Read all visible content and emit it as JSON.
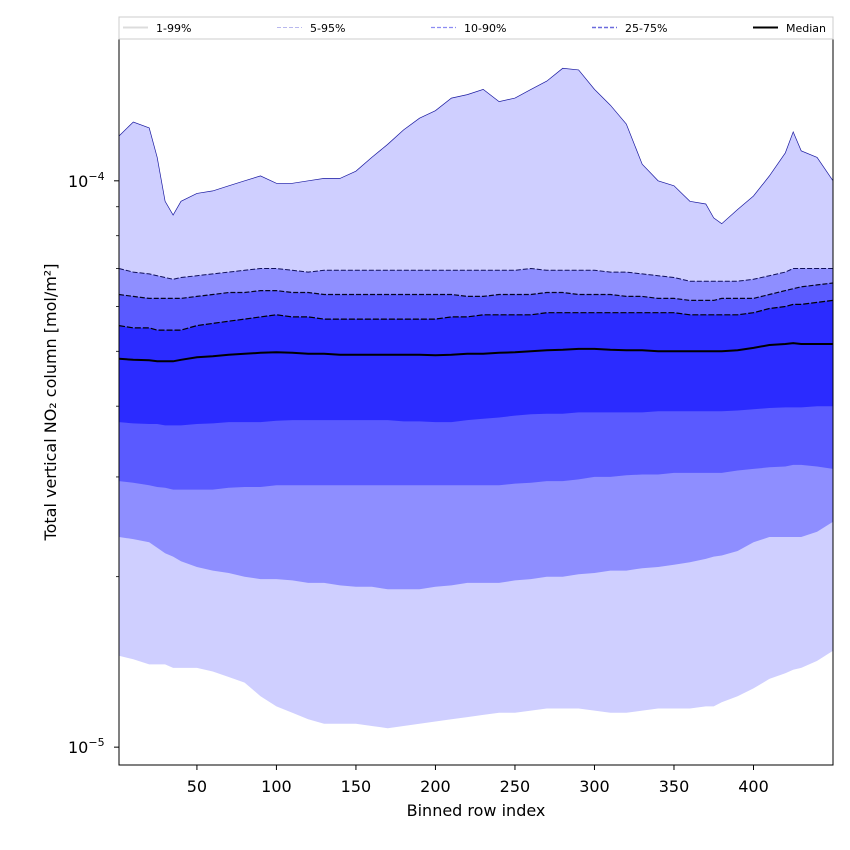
{
  "chart_data": {
    "type": "area",
    "title": "",
    "xlabel": "Binned row index",
    "ylabel": "Total vertical NO₂ column [mol/m²]",
    "yscale": "log",
    "xlim": [
      1,
      450
    ],
    "ylim": [
      9.3e-06,
      0.000178
    ],
    "x_ticks": [
      50,
      100,
      150,
      200,
      250,
      300,
      350,
      400
    ],
    "y_ticks": [
      {
        "value": 0.0001,
        "base": "10",
        "exp": "−4"
      },
      {
        "value": 1e-05,
        "base": "10",
        "exp": "−5"
      }
    ],
    "legend_position": "top",
    "colors": {
      "band_1_99": "#cfcfff",
      "band_5_95": "#8e8eff",
      "band_10_90": "#5a5aff",
      "band_25_75": "#2b2bff",
      "median": "#000000",
      "legend_1_99": "#dcdcdc",
      "legend_5_95": "#b8b8ee",
      "legend_10_90": "#8c8cf2",
      "legend_25_75": "#6b6bdd"
    },
    "legend": [
      {
        "label": "1-99%",
        "style": "solid"
      },
      {
        "label": "5-95%",
        "style": "dashed"
      },
      {
        "label": "10-90%",
        "style": "dashed"
      },
      {
        "label": "25-75%",
        "style": "dashed"
      },
      {
        "label": "Median",
        "style": "solid"
      }
    ],
    "x": [
      1,
      10,
      20,
      25,
      30,
      35,
      40,
      50,
      60,
      70,
      80,
      90,
      100,
      110,
      120,
      130,
      140,
      150,
      160,
      170,
      180,
      190,
      200,
      210,
      220,
      230,
      240,
      250,
      260,
      270,
      280,
      290,
      300,
      310,
      320,
      330,
      340,
      350,
      360,
      370,
      375,
      380,
      390,
      400,
      410,
      420,
      425,
      430,
      440,
      450
    ],
    "series": [
      {
        "name": "p99",
        "values": [
          0.00012,
          0.000127,
          0.000124,
          0.00011,
          9.2e-05,
          8.7e-05,
          9.2e-05,
          9.5e-05,
          9.6e-05,
          9.8e-05,
          0.0001,
          0.000102,
          9.9e-05,
          9.9e-05,
          0.0001,
          0.000101,
          0.000101,
          0.000104,
          0.00011,
          0.000116,
          0.000123,
          0.000129,
          0.000133,
          0.00014,
          0.000142,
          0.000145,
          0.000138,
          0.00014,
          0.000145,
          0.00015,
          0.000158,
          0.000157,
          0.000145,
          0.000136,
          0.000126,
          0.000107,
          0.0001,
          9.8e-05,
          9.2e-05,
          9.1e-05,
          8.6e-05,
          8.4e-05,
          8.9e-05,
          9.4e-05,
          0.000102,
          0.000112,
          0.000122,
          0.000113,
          0.00011,
          0.0001
        ]
      },
      {
        "name": "p95",
        "values": [
          7e-05,
          6.9e-05,
          6.85e-05,
          6.8e-05,
          6.75e-05,
          6.7e-05,
          6.75e-05,
          6.8e-05,
          6.85e-05,
          6.9e-05,
          6.95e-05,
          7e-05,
          7e-05,
          6.95e-05,
          6.9e-05,
          6.95e-05,
          6.95e-05,
          6.95e-05,
          6.95e-05,
          6.95e-05,
          6.95e-05,
          6.95e-05,
          6.95e-05,
          6.95e-05,
          6.95e-05,
          6.95e-05,
          6.95e-05,
          6.95e-05,
          7e-05,
          6.95e-05,
          6.95e-05,
          6.95e-05,
          6.95e-05,
          6.9e-05,
          6.9e-05,
          6.85e-05,
          6.8e-05,
          6.75e-05,
          6.65e-05,
          6.65e-05,
          6.65e-05,
          6.65e-05,
          6.65e-05,
          6.7e-05,
          6.8e-05,
          6.9e-05,
          7e-05,
          7e-05,
          7e-05,
          7e-05
        ]
      },
      {
        "name": "p90",
        "values": [
          6.3e-05,
          6.25e-05,
          6.2e-05,
          6.2e-05,
          6.2e-05,
          6.2e-05,
          6.2e-05,
          6.25e-05,
          6.3e-05,
          6.35e-05,
          6.35e-05,
          6.4e-05,
          6.4e-05,
          6.35e-05,
          6.35e-05,
          6.3e-05,
          6.3e-05,
          6.3e-05,
          6.3e-05,
          6.3e-05,
          6.3e-05,
          6.3e-05,
          6.3e-05,
          6.3e-05,
          6.25e-05,
          6.25e-05,
          6.3e-05,
          6.3e-05,
          6.3e-05,
          6.35e-05,
          6.35e-05,
          6.3e-05,
          6.3e-05,
          6.3e-05,
          6.25e-05,
          6.25e-05,
          6.2e-05,
          6.2e-05,
          6.15e-05,
          6.15e-05,
          6.15e-05,
          6.2e-05,
          6.2e-05,
          6.2e-05,
          6.3e-05,
          6.4e-05,
          6.45e-05,
          6.5e-05,
          6.55e-05,
          6.6e-05
        ]
      },
      {
        "name": "p75",
        "values": [
          5.55e-05,
          5.5e-05,
          5.5e-05,
          5.45e-05,
          5.45e-05,
          5.45e-05,
          5.45e-05,
          5.55e-05,
          5.6e-05,
          5.65e-05,
          5.7e-05,
          5.75e-05,
          5.8e-05,
          5.75e-05,
          5.75e-05,
          5.7e-05,
          5.7e-05,
          5.7e-05,
          5.7e-05,
          5.7e-05,
          5.7e-05,
          5.7e-05,
          5.7e-05,
          5.75e-05,
          5.75e-05,
          5.8e-05,
          5.8e-05,
          5.8e-05,
          5.8e-05,
          5.85e-05,
          5.85e-05,
          5.85e-05,
          5.85e-05,
          5.85e-05,
          5.85e-05,
          5.85e-05,
          5.85e-05,
          5.85e-05,
          5.8e-05,
          5.8e-05,
          5.8e-05,
          5.8e-05,
          5.8e-05,
          5.85e-05,
          5.95e-05,
          6e-05,
          6.05e-05,
          6.05e-05,
          6.1e-05,
          6.15e-05
        ]
      },
      {
        "name": "median",
        "values": [
          4.85e-05,
          4.83e-05,
          4.82e-05,
          4.8e-05,
          4.8e-05,
          4.8e-05,
          4.83e-05,
          4.88e-05,
          4.9e-05,
          4.93e-05,
          4.95e-05,
          4.97e-05,
          4.98e-05,
          4.97e-05,
          4.95e-05,
          4.95e-05,
          4.93e-05,
          4.93e-05,
          4.93e-05,
          4.93e-05,
          4.93e-05,
          4.93e-05,
          4.92e-05,
          4.93e-05,
          4.95e-05,
          4.95e-05,
          4.97e-05,
          4.98e-05,
          5e-05,
          5.02e-05,
          5.03e-05,
          5.05e-05,
          5.05e-05,
          5.03e-05,
          5.02e-05,
          5.02e-05,
          5e-05,
          5e-05,
          5e-05,
          5e-05,
          5e-05,
          5e-05,
          5.02e-05,
          5.07e-05,
          5.13e-05,
          5.15e-05,
          5.17e-05,
          5.15e-05,
          5.15e-05,
          5.15e-05
        ]
      },
      {
        "name": "p25",
        "values": [
          3.75e-05,
          3.73e-05,
          3.72e-05,
          3.72e-05,
          3.7e-05,
          3.7e-05,
          3.7e-05,
          3.72e-05,
          3.73e-05,
          3.75e-05,
          3.75e-05,
          3.75e-05,
          3.77e-05,
          3.78e-05,
          3.78e-05,
          3.78e-05,
          3.78e-05,
          3.78e-05,
          3.78e-05,
          3.78e-05,
          3.76e-05,
          3.76e-05,
          3.75e-05,
          3.75e-05,
          3.78e-05,
          3.8e-05,
          3.82e-05,
          3.85e-05,
          3.87e-05,
          3.88e-05,
          3.88e-05,
          3.9e-05,
          3.9e-05,
          3.9e-05,
          3.9e-05,
          3.9e-05,
          3.92e-05,
          3.92e-05,
          3.92e-05,
          3.92e-05,
          3.92e-05,
          3.92e-05,
          3.93e-05,
          3.95e-05,
          3.97e-05,
          3.98e-05,
          3.98e-05,
          3.98e-05,
          4e-05,
          4e-05
        ]
      },
      {
        "name": "p10",
        "values": [
          2.95e-05,
          2.93e-05,
          2.9e-05,
          2.88e-05,
          2.87e-05,
          2.85e-05,
          2.85e-05,
          2.85e-05,
          2.85e-05,
          2.87e-05,
          2.88e-05,
          2.88e-05,
          2.9e-05,
          2.9e-05,
          2.9e-05,
          2.9e-05,
          2.9e-05,
          2.9e-05,
          2.9e-05,
          2.9e-05,
          2.9e-05,
          2.9e-05,
          2.9e-05,
          2.9e-05,
          2.9e-05,
          2.9e-05,
          2.9e-05,
          2.92e-05,
          2.93e-05,
          2.95e-05,
          2.95e-05,
          2.97e-05,
          3e-05,
          3e-05,
          3.02e-05,
          3.03e-05,
          3.03e-05,
          3.05e-05,
          3.05e-05,
          3.05e-05,
          3.05e-05,
          3.05e-05,
          3.08e-05,
          3.1e-05,
          3.12e-05,
          3.13e-05,
          3.15e-05,
          3.15e-05,
          3.13e-05,
          3.1e-05
        ]
      },
      {
        "name": "p5",
        "values": [
          2.35e-05,
          2.33e-05,
          2.3e-05,
          2.25e-05,
          2.2e-05,
          2.17e-05,
          2.13e-05,
          2.08e-05,
          2.05e-05,
          2.03e-05,
          2e-05,
          1.98e-05,
          1.98e-05,
          1.97e-05,
          1.95e-05,
          1.95e-05,
          1.93e-05,
          1.92e-05,
          1.92e-05,
          1.9e-05,
          1.9e-05,
          1.9e-05,
          1.92e-05,
          1.93e-05,
          1.95e-05,
          1.95e-05,
          1.95e-05,
          1.97e-05,
          1.98e-05,
          2e-05,
          2e-05,
          2.02e-05,
          2.03e-05,
          2.05e-05,
          2.05e-05,
          2.07e-05,
          2.08e-05,
          2.1e-05,
          2.12e-05,
          2.15e-05,
          2.17e-05,
          2.18e-05,
          2.22e-05,
          2.3e-05,
          2.35e-05,
          2.35e-05,
          2.35e-05,
          2.35e-05,
          2.4e-05,
          2.5e-05
        ]
      },
      {
        "name": "p1",
        "values": [
          1.45e-05,
          1.43e-05,
          1.4e-05,
          1.4e-05,
          1.4e-05,
          1.38e-05,
          1.38e-05,
          1.38e-05,
          1.36e-05,
          1.33e-05,
          1.3e-05,
          1.23e-05,
          1.18e-05,
          1.15e-05,
          1.12e-05,
          1.1e-05,
          1.1e-05,
          1.1e-05,
          1.09e-05,
          1.08e-05,
          1.09e-05,
          1.1e-05,
          1.11e-05,
          1.12e-05,
          1.13e-05,
          1.14e-05,
          1.15e-05,
          1.15e-05,
          1.16e-05,
          1.17e-05,
          1.17e-05,
          1.17e-05,
          1.16e-05,
          1.15e-05,
          1.15e-05,
          1.16e-05,
          1.17e-05,
          1.17e-05,
          1.17e-05,
          1.18e-05,
          1.18e-05,
          1.2e-05,
          1.23e-05,
          1.27e-05,
          1.32e-05,
          1.35e-05,
          1.37e-05,
          1.38e-05,
          1.42e-05,
          1.48e-05
        ]
      }
    ]
  }
}
